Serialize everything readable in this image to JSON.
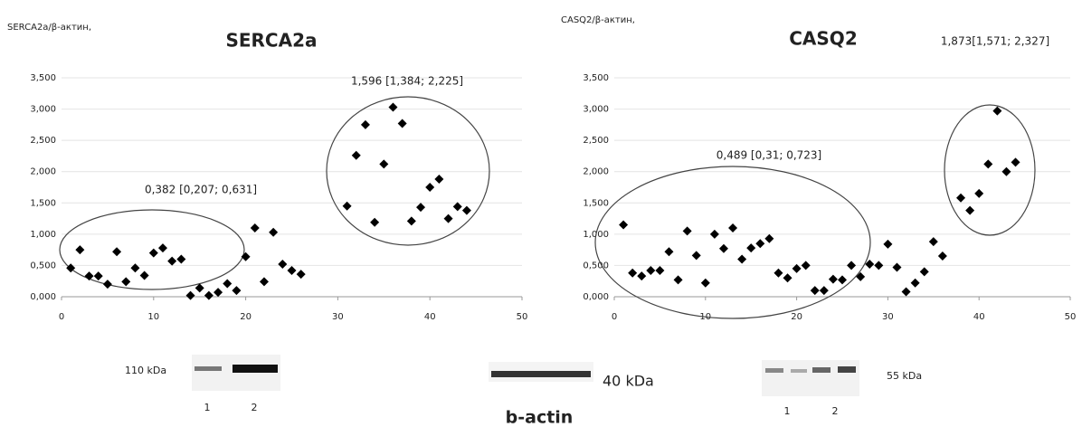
{
  "chart_data": [
    {
      "type": "scatter",
      "title": "SERCA2a",
      "y_label": "SERCA2a/β-актин,",
      "color": "#000000",
      "grid": true,
      "annotations": [
        "0,382 [0,207; 0,631]",
        "1,596 [1,384; 2,225]"
      ],
      "x": [
        1,
        2,
        3,
        4,
        5,
        6,
        7,
        8,
        9,
        10,
        11,
        12,
        13,
        14,
        15,
        16,
        17,
        18,
        19,
        20,
        21,
        22,
        23,
        24,
        25,
        26,
        31,
        32,
        33,
        34,
        35,
        36,
        37,
        38,
        39,
        40,
        41,
        42,
        43,
        44
      ],
      "values": [
        0.46,
        0.75,
        0.33,
        0.33,
        0.2,
        0.72,
        0.24,
        0.46,
        0.34,
        0.7,
        0.78,
        0.57,
        0.6,
        0.02,
        0.14,
        0.02,
        0.07,
        0.21,
        0.1,
        0.64,
        1.1,
        0.24,
        1.03,
        0.52,
        0.42,
        0.36,
        1.45,
        2.26,
        2.75,
        1.19,
        2.12,
        3.03,
        2.77,
        1.21,
        1.43,
        1.75,
        1.88,
        1.25,
        1.44,
        1.38
      ],
      "xlim": [
        0,
        50
      ],
      "xticks": [
        0,
        10,
        20,
        30,
        40,
        50
      ],
      "ylim": [
        0,
        3.5
      ],
      "yticks": [
        {
          "value": 0,
          "label": "0,000"
        },
        {
          "value": 0.5,
          "label": "0,500"
        },
        {
          "value": 1,
          "label": "1,000"
        },
        {
          "value": 1.5,
          "label": "1,500"
        },
        {
          "value": 2,
          "label": "2,000"
        },
        {
          "value": 2.5,
          "label": "2,500"
        },
        {
          "value": 3,
          "label": "3,000"
        },
        {
          "value": 3.5,
          "label": "3,500"
        }
      ]
    },
    {
      "type": "scatter",
      "title": "CASQ2",
      "y_label": "CASQ2/β-актин,",
      "color": "#000000",
      "grid": true,
      "annotations": [
        "0,489 [0,31; 0,723]",
        "1,873[1,571; 2,327]"
      ],
      "x": [
        1,
        2,
        3,
        4,
        5,
        6,
        7,
        8,
        9,
        10,
        11,
        12,
        13,
        14,
        15,
        16,
        17,
        18,
        19,
        20,
        21,
        22,
        23,
        24,
        25,
        26,
        27,
        28,
        29,
        30,
        31,
        32,
        33,
        34,
        35,
        36,
        38,
        39,
        40,
        41,
        42,
        43,
        44
      ],
      "values": [
        1.15,
        0.38,
        0.33,
        0.42,
        0.42,
        0.72,
        0.27,
        1.05,
        0.66,
        0.22,
        1.0,
        0.77,
        1.1,
        0.6,
        0.78,
        0.85,
        0.93,
        0.38,
        0.3,
        0.45,
        0.5,
        0.1,
        0.1,
        0.28,
        0.27,
        0.5,
        0.32,
        0.52,
        0.5,
        0.84,
        0.47,
        0.08,
        0.22,
        0.4,
        0.88,
        0.65,
        1.58,
        1.38,
        1.65,
        2.12,
        2.97,
        2.0,
        2.15
      ],
      "xlim": [
        0,
        50
      ],
      "xticks": [
        0,
        10,
        20,
        30,
        40,
        50
      ],
      "ylim": [
        0,
        3.5
      ],
      "yticks": [
        {
          "value": 0,
          "label": "0,000"
        },
        {
          "value": 0.5,
          "label": "0,500"
        },
        {
          "value": 1,
          "label": "1,000"
        },
        {
          "value": 1.5,
          "label": "1,500"
        },
        {
          "value": 2,
          "label": "2,000"
        },
        {
          "value": 2.5,
          "label": "2,500"
        },
        {
          "value": 3,
          "label": "3,000"
        },
        {
          "value": 3.5,
          "label": "3,500"
        }
      ]
    }
  ],
  "blots": [
    {
      "label": "110 kDa",
      "lanes": [
        "1",
        "2"
      ]
    },
    {
      "label": "40 kDa",
      "caption": "b-actin"
    },
    {
      "label": "55 kDa",
      "lanes": [
        "1",
        "2"
      ]
    }
  ]
}
